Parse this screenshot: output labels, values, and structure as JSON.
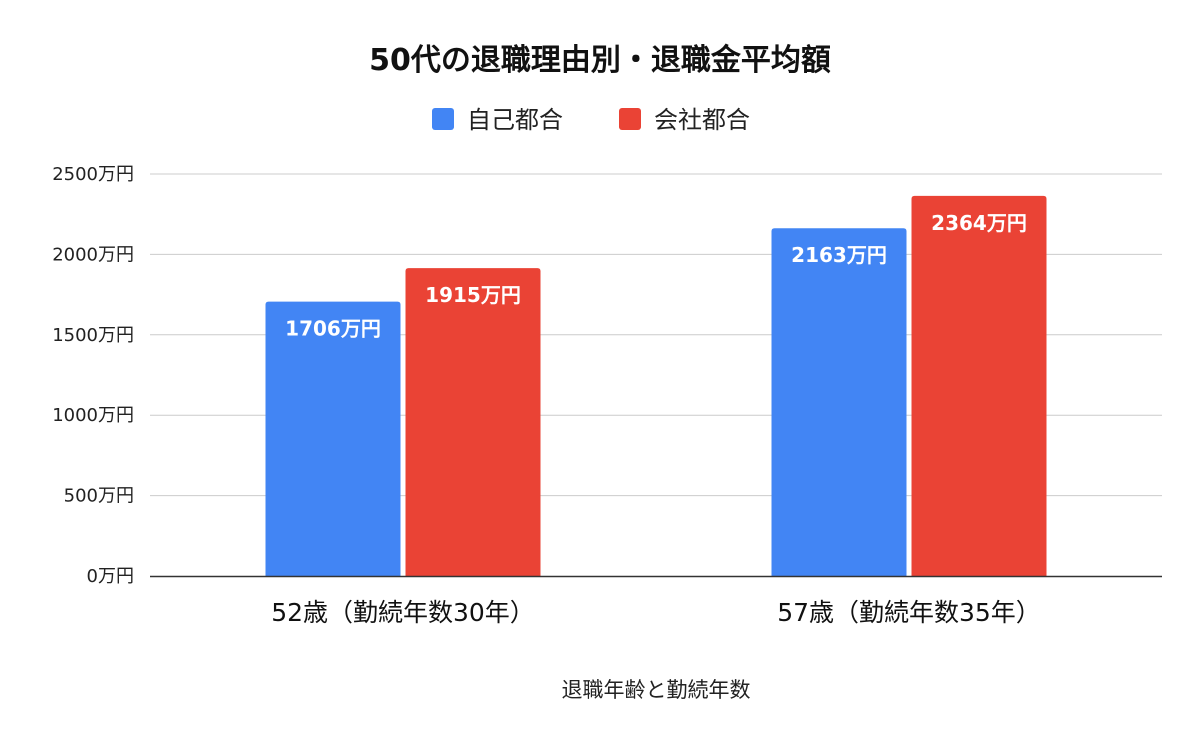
{
  "chart_data": {
    "type": "bar",
    "title": "50代の退職理由別・退職金平均額",
    "xlabel": "退職年齢と勤続年数",
    "ylabel": "",
    "categories": [
      "52歳（勤続年数30年）",
      "57歳（勤続年数35年）"
    ],
    "series": [
      {
        "name": "自己都合",
        "color": "#4285F4",
        "values": [
          1706,
          2163
        ],
        "labels": [
          "1706万円",
          "2163万円"
        ]
      },
      {
        "name": "会社都合",
        "color": "#EA4335",
        "values": [
          1915,
          2364
        ],
        "labels": [
          "1915万円",
          "2364万円"
        ]
      }
    ],
    "ylim": [
      0,
      2500
    ],
    "yticks": [
      0,
      500,
      1000,
      1500,
      2000,
      2500
    ],
    "ytick_labels": [
      "0万円",
      "500万円",
      "1000万円",
      "1500万円",
      "2000万円",
      "2500万円"
    ],
    "grid": true,
    "legend_position": "top-center"
  }
}
